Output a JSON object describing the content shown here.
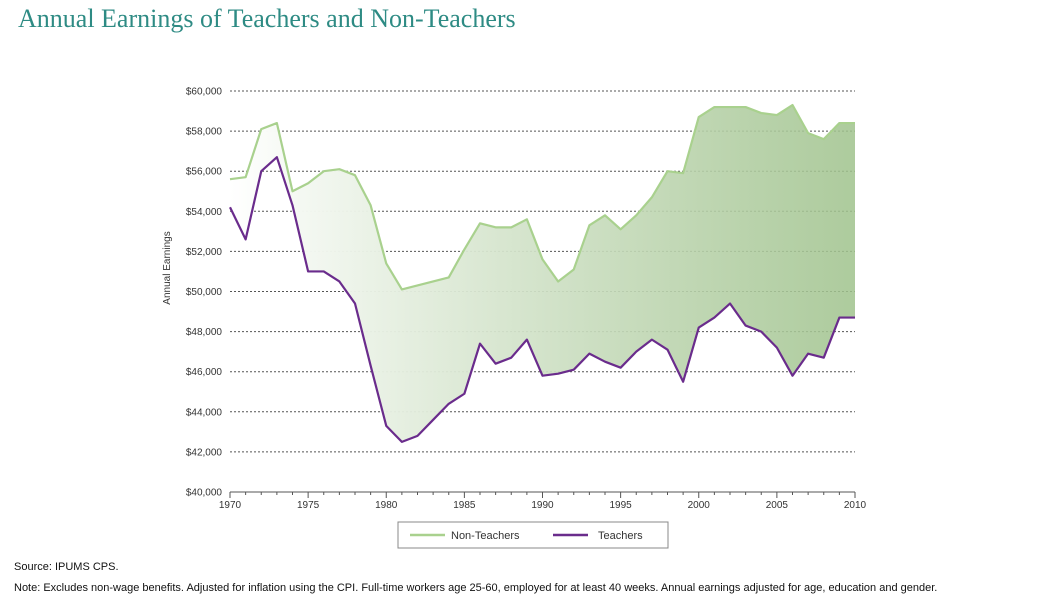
{
  "title": "Annual Earnings of Teachers and Non-Teachers",
  "source": "Source: IPUMS CPS.",
  "note": "Note: Excludes non-wage benefits. Adjusted for inflation using the CPI. Full-time workers age 25-60, employed for at least 40 weeks. Annual earnings adjusted for age, education and gender.",
  "colors": {
    "title": "#2e8b84",
    "non_teachers": "#a9d18e",
    "teachers": "#6a2c8c",
    "fill": "#9fc28c"
  },
  "chart_data": {
    "type": "line",
    "title": "Annual Earnings of Teachers and Non-Teachers",
    "xlabel": "",
    "ylabel": "Annual Earnings",
    "xlim": [
      1970,
      2010
    ],
    "ylim": [
      40000,
      60000
    ],
    "xticks": [
      1970,
      1975,
      1980,
      1985,
      1990,
      1995,
      2000,
      2005,
      2010
    ],
    "xtick_labels": [
      "1970",
      "1975",
      "1980",
      "1985",
      "1990",
      "1995",
      "2000",
      "2005",
      "2010"
    ],
    "yticks": [
      40000,
      42000,
      44000,
      46000,
      48000,
      50000,
      52000,
      54000,
      56000,
      58000,
      60000
    ],
    "ytick_labels": [
      "$40,000",
      "$42,000",
      "$44,000",
      "$46,000",
      "$48,000",
      "$50,000",
      "$52,000",
      "$54,000",
      "$56,000",
      "$58,000",
      "$60,000"
    ],
    "grid": "horizontal dotted",
    "legend_position": "bottom",
    "x": [
      1970,
      1971,
      1972,
      1973,
      1974,
      1975,
      1976,
      1977,
      1978,
      1979,
      1980,
      1981,
      1982,
      1983,
      1984,
      1985,
      1986,
      1987,
      1988,
      1989,
      1990,
      1991,
      1992,
      1993,
      1994,
      1995,
      1996,
      1997,
      1998,
      1999,
      2000,
      2001,
      2002,
      2003,
      2004,
      2005,
      2006,
      2007,
      2008,
      2009,
      2010
    ],
    "series": [
      {
        "name": "Non-Teachers",
        "color": "#a9d18e",
        "values": [
          55600,
          55700,
          58100,
          58400,
          55000,
          55400,
          56000,
          56100,
          55800,
          54300,
          51400,
          50100,
          50300,
          50500,
          50700,
          52100,
          53400,
          53200,
          53200,
          53600,
          51600,
          50500,
          51100,
          53300,
          53800,
          53100,
          53800,
          54700,
          56000,
          55900,
          58700,
          59200,
          59200,
          59200,
          58900,
          58800,
          59300,
          57900,
          57600,
          58400,
          58400
        ]
      },
      {
        "name": "Teachers",
        "color": "#6a2c8c",
        "values": [
          54200,
          52600,
          56000,
          56700,
          54300,
          51000,
          51000,
          50500,
          49400,
          46300,
          43300,
          42500,
          42800,
          43600,
          44400,
          44900,
          47400,
          46400,
          46700,
          47600,
          45800,
          45900,
          46100,
          46900,
          46500,
          46200,
          47000,
          47600,
          47100,
          45500,
          48200,
          48700,
          49400,
          48300,
          48000,
          47200,
          45800,
          46900,
          46700,
          48700,
          48700
        ]
      }
    ]
  }
}
